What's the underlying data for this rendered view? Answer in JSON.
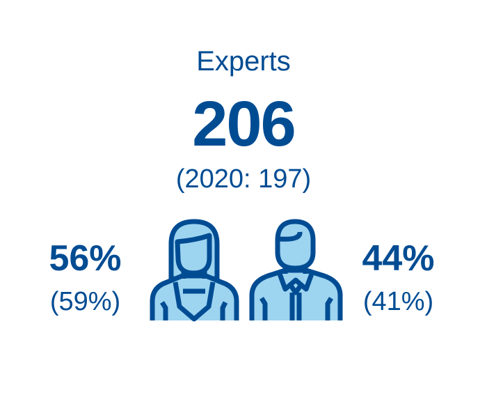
{
  "title": "Experts",
  "total": "206",
  "previous": "(2020: 197)",
  "women": {
    "percent": "56%",
    "previous": "(59%)",
    "icon": "woman-icon"
  },
  "men": {
    "percent": "44%",
    "previous": "(41%)",
    "icon": "man-icon"
  },
  "colors": {
    "primary": "#004c93",
    "icon_fill": "#9dd4f0"
  }
}
